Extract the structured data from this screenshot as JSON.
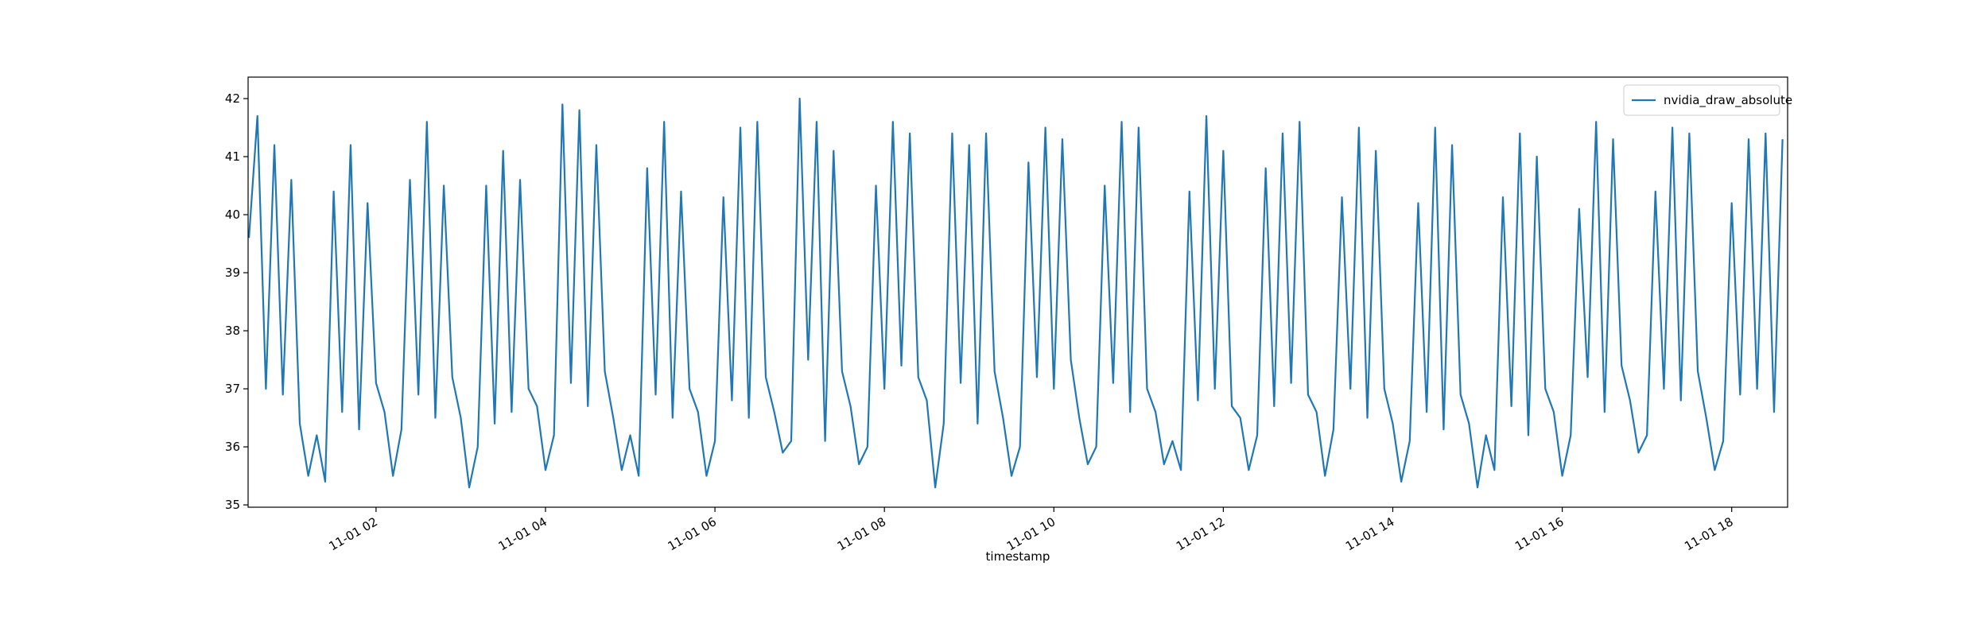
{
  "chart_data": {
    "type": "line",
    "x_label": "timestamp",
    "xlim": [
      0.49,
      18.66
    ],
    "xticks": [
      {
        "value": 2,
        "label": "11-01 02"
      },
      {
        "value": 4,
        "label": "11-01 04"
      },
      {
        "value": 6,
        "label": "11-01 06"
      },
      {
        "value": 8,
        "label": "11-01 08"
      },
      {
        "value": 10,
        "label": "11-01 10"
      },
      {
        "value": 12,
        "label": "11-01 12"
      },
      {
        "value": 14,
        "label": "11-01 14"
      },
      {
        "value": 16,
        "label": "11-01 16"
      },
      {
        "value": 18,
        "label": "11-01 18"
      }
    ],
    "ylim": [
      34.96,
      42.37
    ],
    "yticks": [
      35,
      36,
      37,
      38,
      39,
      40,
      41,
      42
    ],
    "legend": "upper right",
    "x": [
      0.5,
      0.6,
      0.7,
      0.8,
      0.9,
      1.0,
      1.1,
      1.2,
      1.3,
      1.4,
      1.5,
      1.6,
      1.7,
      1.8,
      1.9,
      2.0,
      2.1,
      2.2,
      2.3,
      2.4,
      2.5,
      2.6,
      2.7,
      2.8,
      2.9,
      3.0,
      3.1,
      3.2,
      3.3,
      3.4,
      3.5,
      3.6,
      3.7,
      3.8,
      3.9,
      4.0,
      4.1,
      4.2,
      4.3,
      4.4,
      4.5,
      4.6,
      4.7,
      4.8,
      4.9,
      5.0,
      5.1,
      5.2,
      5.3,
      5.4,
      5.5,
      5.6,
      5.7,
      5.8,
      5.9,
      6.0,
      6.1,
      6.2,
      6.3,
      6.4,
      6.5,
      6.6,
      6.7,
      6.8,
      6.9,
      7.0,
      7.1,
      7.2,
      7.3,
      7.4,
      7.5,
      7.6,
      7.7,
      7.8,
      7.9,
      8.0,
      8.1,
      8.2,
      8.3,
      8.4,
      8.5,
      8.6,
      8.7,
      8.8,
      8.9,
      9.0,
      9.1,
      9.2,
      9.3,
      9.4,
      9.5,
      9.6,
      9.7,
      9.8,
      9.9,
      10.0,
      10.1,
      10.2,
      10.3,
      10.4,
      10.5,
      10.6,
      10.7,
      10.8,
      10.9,
      11.0,
      11.1,
      11.2,
      11.3,
      11.4,
      11.5,
      11.6,
      11.7,
      11.8,
      11.9,
      12.0,
      12.1,
      12.2,
      12.3,
      12.4,
      12.5,
      12.6,
      12.7,
      12.8,
      12.9,
      13.0,
      13.1,
      13.2,
      13.3,
      13.4,
      13.5,
      13.6,
      13.7,
      13.8,
      13.9,
      14.0,
      14.1,
      14.2,
      14.3,
      14.4,
      14.5,
      14.6,
      14.7,
      14.8,
      14.9,
      15.0,
      15.1,
      15.2,
      15.3,
      15.4,
      15.5,
      15.6,
      15.7,
      15.8,
      15.9,
      16.0,
      16.1,
      16.2,
      16.3,
      16.4,
      16.5,
      16.6,
      16.7,
      16.8,
      16.9,
      17.0,
      17.1,
      17.2,
      17.3,
      17.4,
      17.5,
      17.6,
      17.7,
      17.8,
      17.9,
      18.0,
      18.1,
      18.2,
      18.3,
      18.4,
      18.5,
      18.6
    ],
    "series": [
      {
        "name": "nvidia_draw_absolute",
        "color": "#1f77b4",
        "values": [
          39.6,
          41.7,
          37.0,
          41.2,
          36.9,
          40.6,
          36.4,
          35.5,
          36.2,
          35.4,
          40.4,
          36.6,
          41.2,
          36.3,
          40.2,
          37.1,
          36.6,
          35.5,
          36.3,
          40.6,
          36.9,
          41.6,
          36.5,
          40.5,
          37.2,
          36.5,
          35.3,
          36.0,
          40.5,
          36.4,
          41.1,
          36.6,
          40.6,
          37.0,
          36.7,
          35.6,
          36.2,
          41.9,
          37.1,
          41.8,
          36.7,
          41.2,
          37.3,
          36.5,
          35.6,
          36.2,
          35.5,
          40.8,
          36.9,
          41.6,
          36.5,
          40.4,
          37.0,
          36.6,
          35.5,
          36.1,
          40.3,
          36.8,
          41.5,
          36.5,
          41.6,
          37.2,
          36.6,
          35.9,
          36.1,
          42.0,
          37.5,
          41.6,
          36.1,
          41.1,
          37.3,
          36.7,
          35.7,
          36.0,
          40.5,
          37.0,
          41.6,
          37.4,
          41.4,
          37.2,
          36.8,
          35.3,
          36.4,
          41.4,
          37.1,
          41.2,
          36.4,
          41.4,
          37.3,
          36.5,
          35.5,
          36.0,
          40.9,
          37.2,
          41.5,
          37.0,
          41.3,
          37.5,
          36.5,
          35.7,
          36.0,
          40.5,
          37.1,
          41.6,
          36.6,
          41.5,
          37.0,
          36.6,
          35.7,
          36.1,
          35.6,
          40.4,
          36.8,
          41.7,
          37.0,
          41.1,
          36.7,
          36.5,
          35.6,
          36.2,
          40.8,
          36.7,
          41.4,
          37.1,
          41.6,
          36.9,
          36.6,
          35.5,
          36.3,
          40.3,
          37.0,
          41.5,
          36.5,
          41.1,
          37.0,
          36.4,
          35.4,
          36.1,
          40.2,
          36.6,
          41.5,
          36.3,
          41.2,
          36.9,
          36.4,
          35.3,
          36.2,
          35.6,
          40.3,
          36.7,
          41.4,
          36.2,
          41.0,
          37.0,
          36.6,
          35.5,
          36.2,
          40.1,
          37.2,
          41.6,
          36.6,
          41.3,
          37.4,
          36.8,
          35.9,
          36.2,
          40.4,
          37.0,
          41.5,
          36.8,
          41.4,
          37.3,
          36.5,
          35.6,
          36.1,
          40.2,
          36.9,
          41.3,
          37.0,
          41.4,
          36.6,
          41.3
        ]
      }
    ]
  }
}
